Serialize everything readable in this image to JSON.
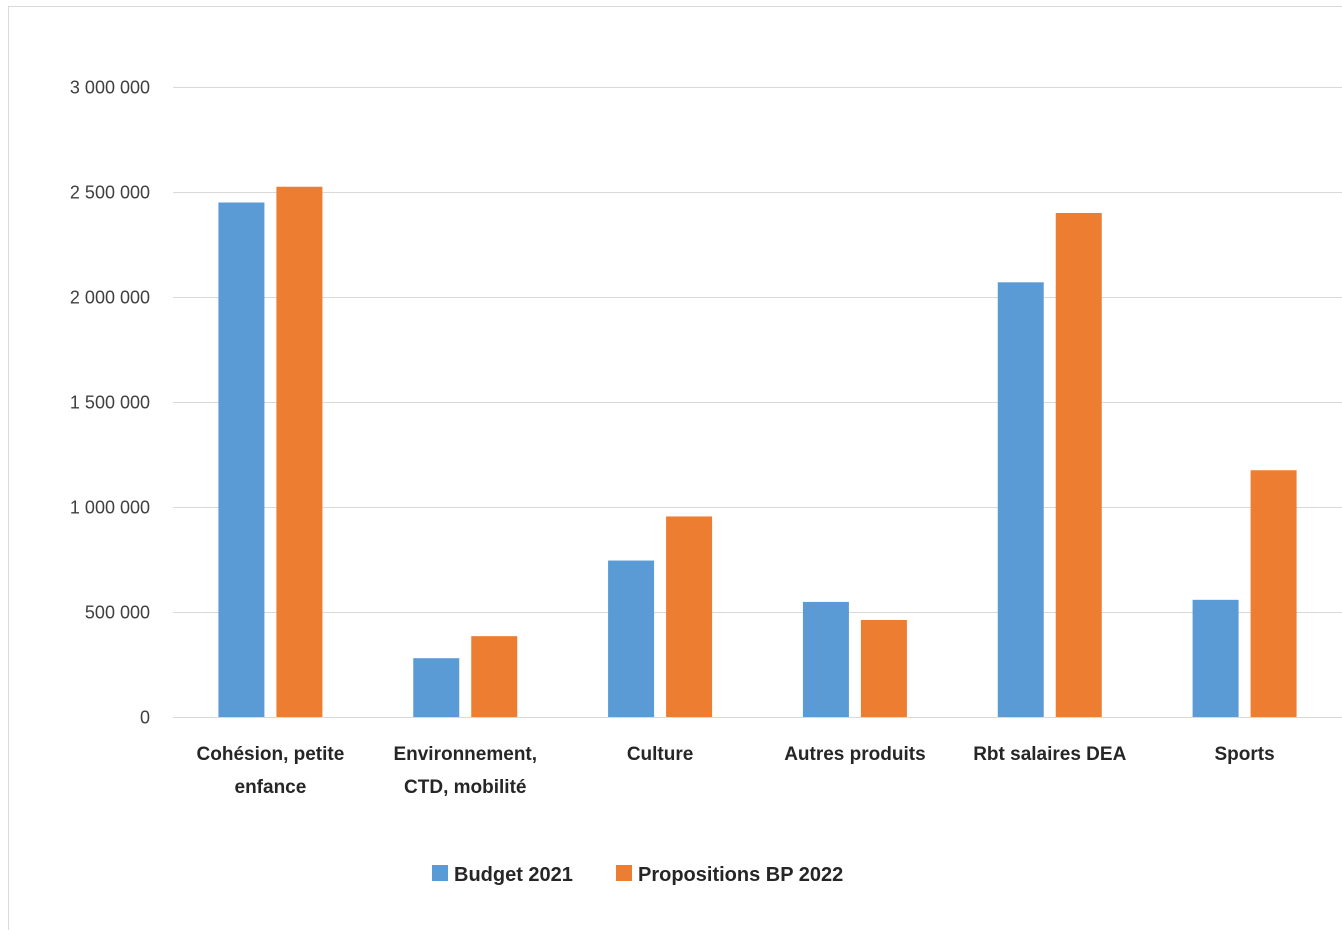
{
  "chart_data": {
    "type": "bar",
    "categories": [
      [
        "Cohésion, petite",
        "enfance"
      ],
      [
        "Environnement,",
        "CTD, mobilité"
      ],
      [
        "Culture"
      ],
      [
        "Autres produits"
      ],
      [
        "Rbt salaires DEA"
      ],
      [
        "Sports"
      ]
    ],
    "series": [
      {
        "name": "Budget 2021",
        "color": "#5B9BD5",
        "values": [
          2450000,
          280000,
          745000,
          548000,
          2070000,
          558000
        ]
      },
      {
        "name": "Propositions BP 2022",
        "color": "#ED7D31",
        "values": [
          2525000,
          385000,
          955000,
          462000,
          2400000,
          1175000
        ]
      }
    ],
    "yticks": [
      "0",
      "500 000",
      "1 000 000",
      "1 500 000",
      "2 000 000",
      "2 500 000",
      "3 000 000"
    ],
    "ylim": [
      0,
      3000000
    ],
    "grid": true,
    "legend": "bottom",
    "gridColor": "#D9D9D9",
    "borderColor": "#D9D9D9"
  }
}
